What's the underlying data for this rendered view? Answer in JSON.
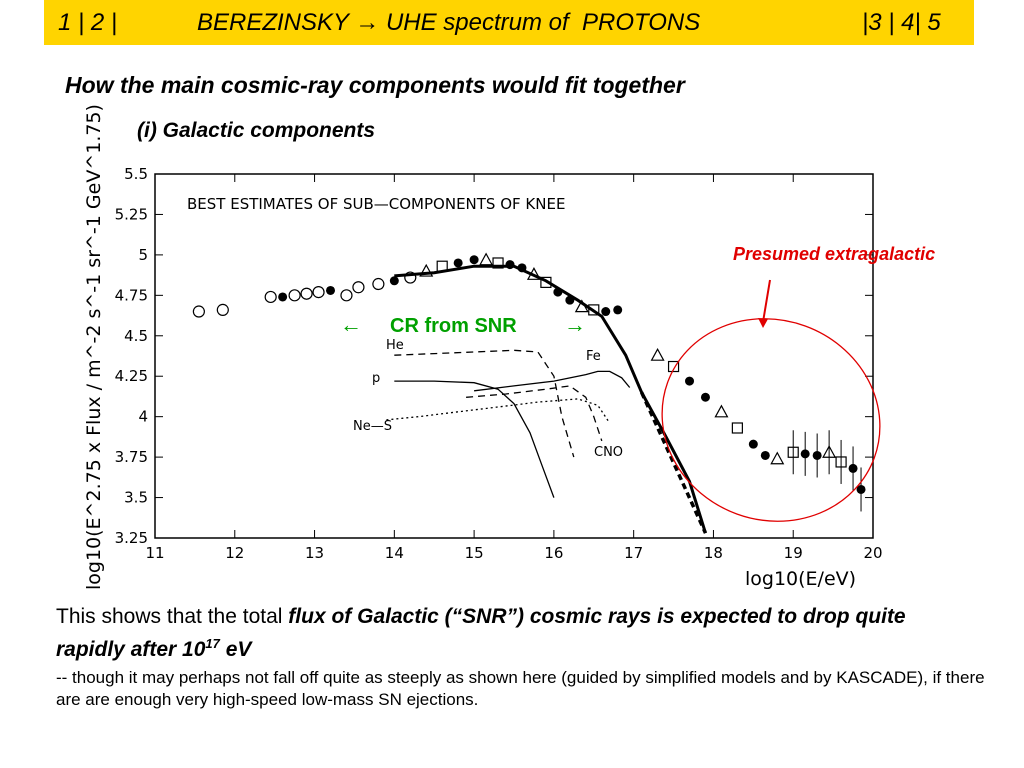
{
  "header": {
    "nav_left": "1 | 2 |",
    "title": "BEREZINSKY → UHE spectrum of  PROTONS",
    "nav_right": "|3 | 4| 5"
  },
  "slide": {
    "title": "How the main cosmic-ray components would fit together",
    "subtitle": "(i) Galactic components"
  },
  "chart_data": {
    "type": "scatter",
    "title": "BEST ESTIMATES OF SUB—COMPONENTS OF KNEE",
    "xlabel": "log10(E/eV)",
    "ylabel": "log10(E^2.75 x Flux / m^-2 s^-1 sr^-1 GeV^1.75)",
    "xlim": [
      11,
      20
    ],
    "ylim": [
      3.25,
      5.5
    ],
    "x_ticks": [
      "11",
      "12",
      "13",
      "14",
      "15",
      "16",
      "17",
      "18",
      "19",
      "20"
    ],
    "y_ticks": [
      "3.25",
      "3.5",
      "3.75",
      "4",
      "4.25",
      "4.5",
      "4.75",
      "5",
      "5.25",
      "5.5"
    ],
    "series": [
      {
        "name": "p",
        "style": "solid",
        "x": [
          14.0,
          14.5,
          15.0,
          15.3,
          15.5,
          15.7,
          15.85,
          16.0
        ],
        "y": [
          4.22,
          4.22,
          4.21,
          4.17,
          4.08,
          3.9,
          3.7,
          3.5
        ]
      },
      {
        "name": "He",
        "style": "dashed",
        "x": [
          14.0,
          14.5,
          15.0,
          15.5,
          15.8,
          16.0,
          16.1,
          16.25
        ],
        "y": [
          4.38,
          4.39,
          4.4,
          4.41,
          4.4,
          4.25,
          4.0,
          3.75
        ]
      },
      {
        "name": "CNO",
        "style": "dashed",
        "x": [
          14.9,
          15.4,
          15.9,
          16.2,
          16.4,
          16.5,
          16.6
        ],
        "y": [
          4.12,
          4.14,
          4.17,
          4.19,
          4.12,
          4.0,
          3.85
        ]
      },
      {
        "name": "Ne—S",
        "style": "dotted",
        "x": [
          13.9,
          14.3,
          14.8,
          15.3,
          15.8,
          16.3,
          16.55,
          16.7
        ],
        "y": [
          3.98,
          4.0,
          4.03,
          4.06,
          4.09,
          4.11,
          4.07,
          3.96
        ]
      },
      {
        "name": "Fe",
        "style": "solid",
        "x": [
          15.0,
          15.5,
          16.0,
          16.4,
          16.55,
          16.7,
          16.85,
          16.95
        ],
        "y": [
          4.16,
          4.19,
          4.22,
          4.26,
          4.28,
          4.28,
          4.24,
          4.18
        ]
      },
      {
        "name": "Total galactic",
        "style": "thick",
        "x": [
          14.0,
          14.5,
          15.0,
          15.5,
          15.9,
          16.3,
          16.6,
          16.9,
          17.1,
          17.4,
          17.7,
          17.9
        ],
        "y": [
          4.87,
          4.89,
          4.93,
          4.93,
          4.84,
          4.72,
          4.62,
          4.38,
          4.15,
          3.88,
          3.6,
          3.28
        ]
      },
      {
        "name": "Data",
        "style": "markers",
        "x": [
          11.55,
          11.85,
          12.45,
          12.6,
          12.75,
          12.9,
          13.05,
          13.2,
          13.4,
          13.55,
          13.8,
          14.0,
          14.2,
          14.4,
          14.6,
          14.8,
          15.0,
          15.15,
          15.3,
          15.45,
          15.6,
          15.75,
          15.9,
          16.05,
          16.2,
          16.35,
          16.5,
          16.65,
          16.8,
          17.3,
          17.5,
          17.7,
          17.9,
          18.1,
          18.3,
          18.5,
          18.65,
          18.8,
          19.0,
          19.15,
          19.3,
          19.45,
          19.6,
          19.75,
          19.85
        ],
        "y": [
          4.65,
          4.66,
          4.74,
          4.74,
          4.75,
          4.76,
          4.77,
          4.78,
          4.75,
          4.8,
          4.82,
          4.84,
          4.86,
          4.9,
          4.93,
          4.95,
          4.97,
          4.97,
          4.95,
          4.94,
          4.92,
          4.88,
          4.83,
          4.77,
          4.72,
          4.68,
          4.66,
          4.65,
          4.66,
          4.38,
          4.31,
          4.22,
          4.12,
          4.03,
          3.93,
          3.83,
          3.76,
          3.74,
          3.78,
          3.77,
          3.76,
          3.78,
          3.72,
          3.68,
          3.55
        ]
      }
    ],
    "curve_labels": [
      "He",
      "p",
      "Ne—S",
      "Fe",
      "CNO"
    ],
    "annotations": {
      "snr_label": "CR from SNR",
      "snr_left_arrow": "←",
      "snr_right_arrow": "→",
      "extragalactic": "Presumed extragalactic"
    },
    "colors": {
      "snr": "#00a000",
      "extragalactic": "#e00000",
      "header": "#ffd400"
    },
    "grid": false
  },
  "text": {
    "para1_plain": "This shows that the total ",
    "para1_bold": "flux of Galactic (“SNR”) cosmic rays is expected to drop quite rapidly after 10",
    "para1_sup": "17",
    "para1_end": " eV",
    "para2": "-- though it may perhaps not fall off quite as steeply as shown here (guided by simplified models and by KASCADE), if there are are enough very high-speed low-mass SN ejections."
  }
}
